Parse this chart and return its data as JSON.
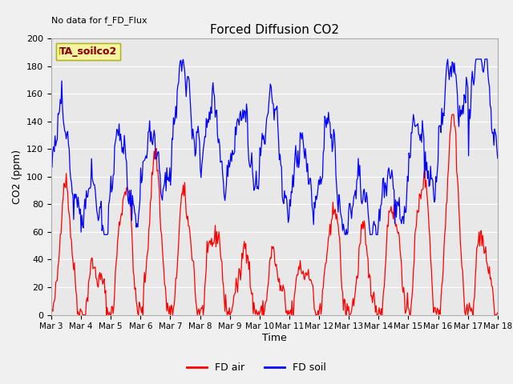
{
  "title": "Forced Diffusion CO2",
  "annotation_top_left": "No data for f_FD_Flux",
  "legend_box_label": "TA_soilco2",
  "xlabel": "Time",
  "ylabel": "CO2 (ppm)",
  "ylim": [
    0,
    200
  ],
  "facecolor": "#f0f0f0",
  "axfacecolor": "#e8e8e8",
  "red_label": "FD air",
  "blue_label": "FD soil",
  "x_tick_labels": [
    "Mar 3",
    "Mar 4",
    "Mar 5",
    "Mar 6",
    "Mar 7",
    "Mar 8",
    "Mar 9",
    "Mar 10",
    "Mar 11",
    "Mar 12",
    "Mar 13",
    "Mar 14",
    "Mar 15",
    "Mar 16",
    "Mar 17",
    "Mar 18"
  ],
  "n_points": 600
}
